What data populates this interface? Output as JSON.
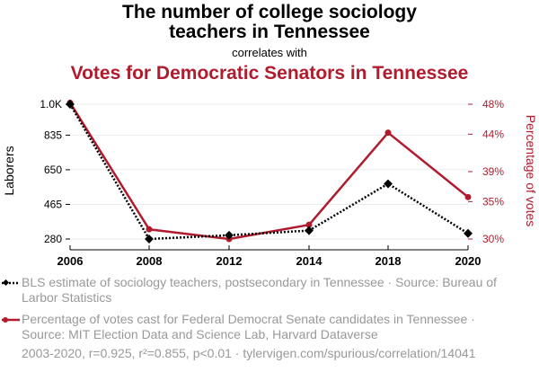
{
  "header": {
    "title_line1": "The number of college sociology",
    "title_line2": "teachers in Tennessee",
    "connector": "correlates with",
    "subtitle": "Votes for Democratic Senators in Tennessee"
  },
  "chart_data": {
    "type": "line",
    "categories": [
      "2006",
      "2008",
      "2012",
      "2014",
      "2018",
      "2020"
    ],
    "series": [
      {
        "name": "BLS estimate of sociology teachers, postsecondary in Tennessee",
        "axis": "left",
        "color": "#000000",
        "style": "dotted",
        "marker": "diamond",
        "values": [
          1000,
          280,
          300,
          325,
          575,
          310
        ]
      },
      {
        "name": "Percentage of votes cast for Federal Democrat Senate candidates in Tennessee",
        "axis": "right",
        "color": "#b01c2e",
        "style": "solid",
        "marker": "circle",
        "values": [
          48.2,
          31.3,
          30.0,
          31.9,
          44.2,
          35.6
        ]
      }
    ],
    "left_axis": {
      "label": "Laborers",
      "ylim": [
        280,
        1000
      ],
      "ticks": [
        280,
        465,
        650,
        835,
        1000
      ],
      "tick_labels": [
        "280",
        "465",
        "650",
        "835",
        "1.0K"
      ]
    },
    "right_axis": {
      "label": "Percentage of votes",
      "ylim": [
        30,
        48
      ],
      "ticks": [
        30,
        35,
        39,
        44,
        48
      ],
      "tick_labels": [
        "30%",
        "35%",
        "39%",
        "44%",
        "48%"
      ]
    },
    "grid": true
  },
  "legend": {
    "item1": "BLS estimate of sociology teachers, postsecondary in Tennessee · Source: Bureau of Larbor Statistics",
    "item2": "Percentage of votes cast for Federal Democrat Senate candidates in Tennessee · Source: MIT Election Data and Science Lab, Harvard Dataverse"
  },
  "footer": "2003-2020, r=0.925, r²=0.855, p<0.01 · tylervigen.com/spurious/correlation/14041"
}
